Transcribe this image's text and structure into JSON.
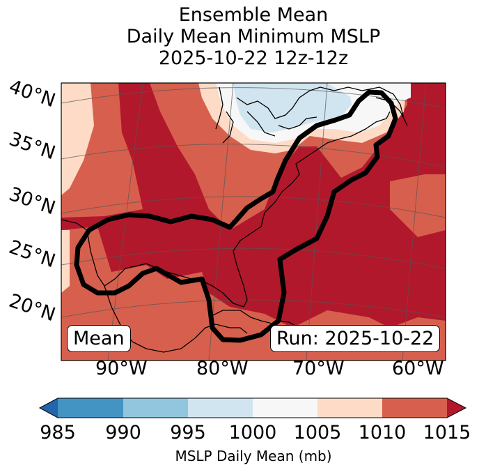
{
  "title": {
    "line1": "Ensemble Mean",
    "line2": "Daily Mean Minimum MSLP",
    "line3": "2025-10-22 12z-12z"
  },
  "map": {
    "lat_labels": [
      "40°N",
      "35°N",
      "30°N",
      "25°N",
      "20°N"
    ],
    "lon_labels": [
      "90°W",
      "80°W",
      "70°W",
      "60°W"
    ],
    "mean_label": "Mean",
    "run_label": "Run: 2025-10-22",
    "field": "MSLP daily mean (mb)",
    "contour_color": "#000000"
  },
  "colorbar": {
    "ticks": [
      "985",
      "990",
      "995",
      "1000",
      "1005",
      "1010",
      "1015"
    ],
    "label": "MSLP Daily Mean (mb)",
    "colors": [
      "#2166ac",
      "#4393c3",
      "#92c5de",
      "#d1e5f0",
      "#f7f7f7",
      "#fddbc7",
      "#d6604d",
      "#b2182b"
    ],
    "extend": "both"
  }
}
